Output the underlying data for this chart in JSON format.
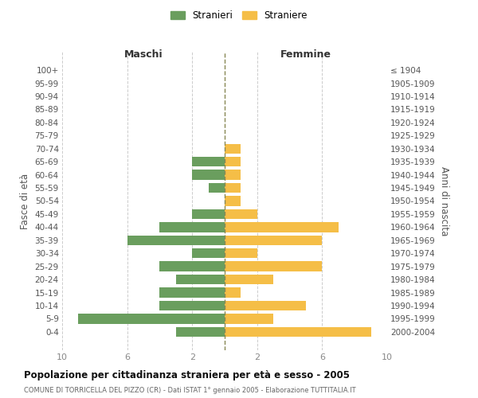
{
  "age_groups": [
    "100+",
    "95-99",
    "90-94",
    "85-89",
    "80-84",
    "75-79",
    "70-74",
    "65-69",
    "60-64",
    "55-59",
    "50-54",
    "45-49",
    "40-44",
    "35-39",
    "30-34",
    "25-29",
    "20-24",
    "15-19",
    "10-14",
    "5-9",
    "0-4"
  ],
  "birth_years": [
    "≤ 1904",
    "1905-1909",
    "1910-1914",
    "1915-1919",
    "1920-1924",
    "1925-1929",
    "1930-1934",
    "1935-1939",
    "1940-1944",
    "1945-1949",
    "1950-1954",
    "1955-1959",
    "1960-1964",
    "1965-1969",
    "1970-1974",
    "1975-1979",
    "1980-1984",
    "1985-1989",
    "1990-1994",
    "1995-1999",
    "2000-2004"
  ],
  "maschi": [
    0,
    0,
    0,
    0,
    0,
    0,
    0,
    2,
    2,
    1,
    0,
    2,
    4,
    6,
    2,
    4,
    3,
    4,
    4,
    9,
    3
  ],
  "femmine": [
    0,
    0,
    0,
    0,
    0,
    0,
    1,
    1,
    1,
    1,
    1,
    2,
    7,
    6,
    2,
    6,
    3,
    1,
    5,
    3,
    9
  ],
  "color_maschi": "#6a9e5e",
  "color_femmine": "#f5be47",
  "title_main": "Popolazione per cittadinanza straniera per età e sesso - 2005",
  "title_sub": "COMUNE DI TORRICELLA DEL PIZZO (CR) - Dati ISTAT 1° gennaio 2005 - Elaborazione TUTTITALIA.IT",
  "ylabel_left": "Fasce di età",
  "ylabel_right": "Anni di nascita",
  "label_maschi": "Maschi",
  "label_femmine": "Femmine",
  "legend_maschi": "Stranieri",
  "legend_femmine": "Straniere",
  "xlim": 10,
  "xtick_positions": [
    -10,
    -6,
    -2,
    2,
    6,
    10
  ],
  "xtick_labels": [
    "10",
    "6",
    "2",
    "2",
    "6",
    "10"
  ],
  "bg_color": "#ffffff",
  "grid_color": "#cccccc",
  "bar_height": 0.75,
  "centerline_color": "#888855",
  "tick_color": "#888888",
  "label_color": "#555555",
  "header_color": "#333333",
  "title_color": "#111111",
  "subtitle_color": "#666666"
}
